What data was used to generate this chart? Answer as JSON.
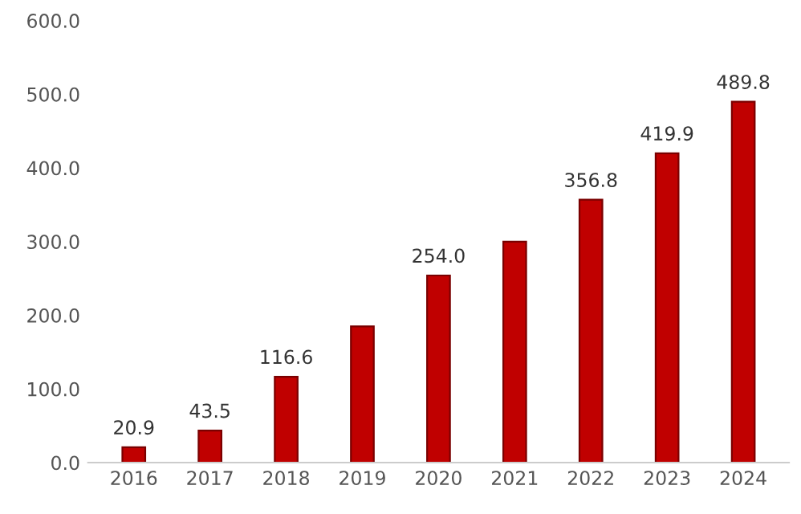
{
  "chart_data": {
    "type": "bar",
    "categories": [
      "2016",
      "2017",
      "2018",
      "2019",
      "2020",
      "2021",
      "2022",
      "2023",
      "2024"
    ],
    "values": [
      20.9,
      43.5,
      116.6,
      185,
      254.0,
      300,
      356.8,
      419.9,
      489.8
    ],
    "value_labels": [
      "20.9",
      "43.5",
      "116.6",
      null,
      "254.0",
      null,
      "356.8",
      "419.9",
      "489.8"
    ],
    "color": "#c00000",
    "ylim": [
      0,
      600
    ],
    "yticks": [
      {
        "value": 0,
        "label": "0.0"
      },
      {
        "value": 100,
        "label": "100.0"
      },
      {
        "value": 200,
        "label": "200.0"
      },
      {
        "value": 300,
        "label": "300.0"
      },
      {
        "value": 400,
        "label": "400.0"
      },
      {
        "value": 500,
        "label": "500.0"
      },
      {
        "value": 600,
        "label": "600.0"
      }
    ],
    "grid": false,
    "legend": false
  }
}
